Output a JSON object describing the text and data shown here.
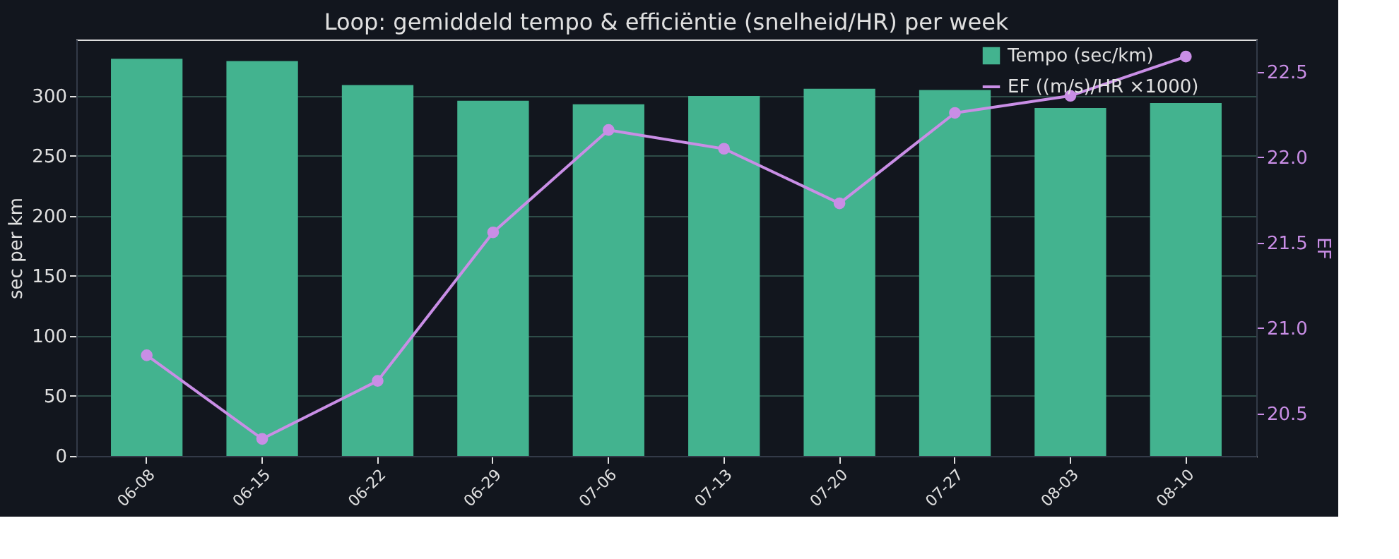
{
  "chart_data": {
    "type": "bar",
    "title": "Loop: gemiddeld tempo & efficiëntie (snelheid/HR) per week",
    "categories": [
      "06-08",
      "06-15",
      "06-22",
      "06-29",
      "07-06",
      "07-13",
      "07-20",
      "07-27",
      "08-03",
      "08-10"
    ],
    "series": [
      {
        "name": "Tempo (sec/km)",
        "color": "#43b38f",
        "values": [
          331,
          329,
          309,
          296,
          293,
          300,
          306,
          305,
          290,
          294
        ]
      },
      {
        "name": "EF ((m/s)/HR ×1000)",
        "type": "line",
        "axis": "y2",
        "color": "#c98ee6",
        "values": [
          20.84,
          20.35,
          20.69,
          21.56,
          22.16,
          22.05,
          21.73,
          22.26,
          22.36,
          22.59
        ]
      }
    ],
    "ylabel": "sec per km",
    "y2label": "EF",
    "ylim": [
      0,
      347
    ],
    "yticks": [
      0,
      50,
      100,
      150,
      200,
      250,
      300
    ],
    "y2lim": [
      20.25,
      22.69
    ],
    "y2ticks": [
      20.5,
      {
        "value": 21,
        "label": "21.0"
      },
      21.5,
      {
        "value": 22,
        "label": "22.0"
      },
      22.5
    ],
    "grid": "y",
    "legend": "top right",
    "marker": "circle",
    "line_style": "solid"
  }
}
